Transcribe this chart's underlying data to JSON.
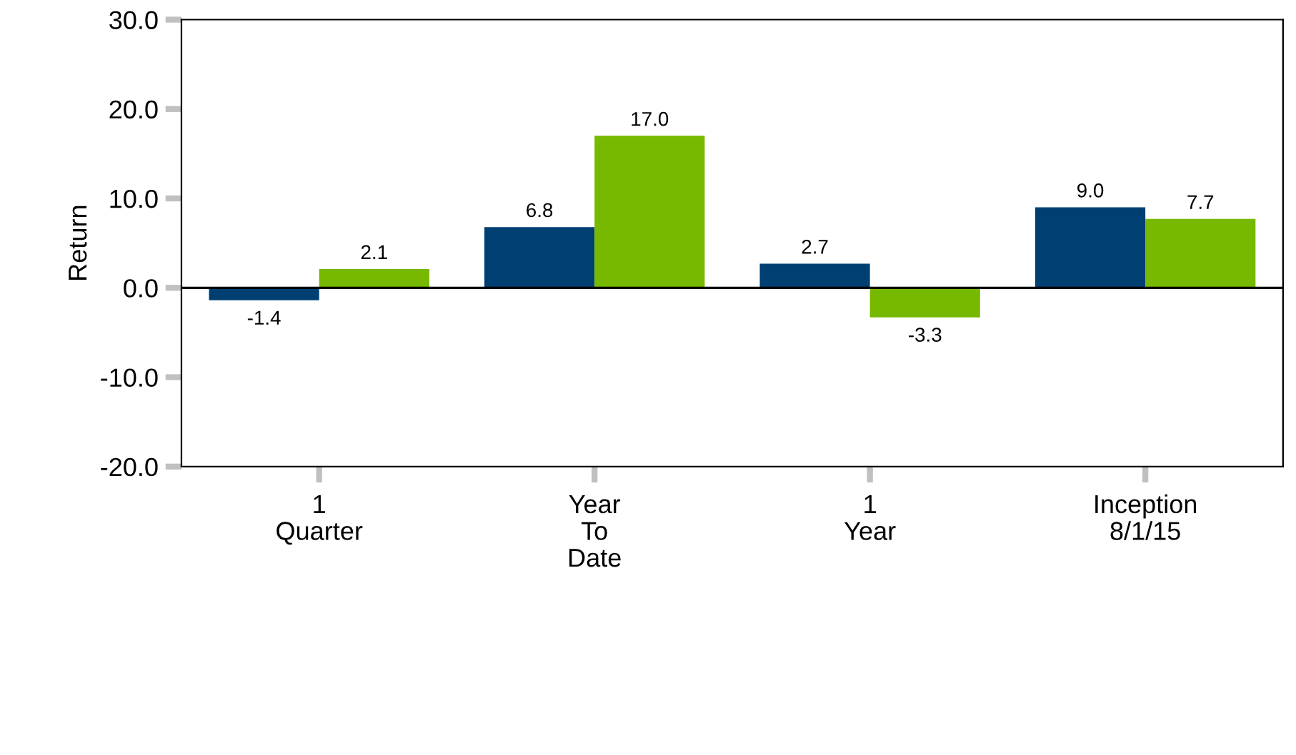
{
  "chart_data": {
    "type": "bar",
    "ylabel": "Return",
    "categories": [
      "1\nQuarter",
      "Year\nTo\nDate",
      "1\nYear",
      "Inception\n8/1/15"
    ],
    "series": [
      {
        "color": "#003f72",
        "values": [
          -1.4,
          6.8,
          2.7,
          9.0
        ],
        "value_labels": [
          "-1.4",
          "6.8",
          "2.7",
          "9.0"
        ]
      },
      {
        "color": "#77b800",
        "values": [
          2.1,
          17.0,
          -3.3,
          7.7
        ],
        "value_labels": [
          "2.1",
          "17.0",
          "-3.3",
          "7.7"
        ]
      }
    ],
    "ylim": [
      -20,
      30
    ],
    "yticks": [
      {
        "value": -20,
        "label": "-20.0"
      },
      {
        "value": -10,
        "label": "-10.0"
      },
      {
        "value": 0,
        "label": "0.0"
      },
      {
        "value": 10,
        "label": "10.0"
      },
      {
        "value": 20,
        "label": "20.0"
      },
      {
        "value": 30,
        "label": "30.0"
      }
    ],
    "ref_lines": [
      {
        "axis": "y",
        "value": 0,
        "color": "#000000"
      }
    ],
    "grid": false
  }
}
